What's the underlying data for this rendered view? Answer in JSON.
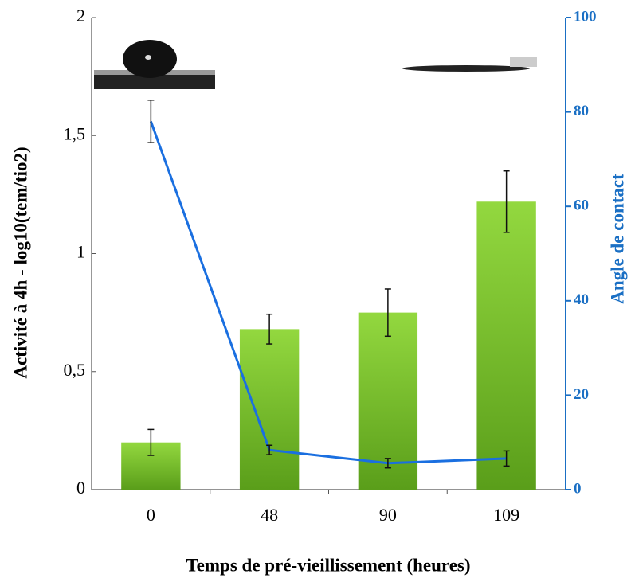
{
  "chart_data": {
    "type": "bar",
    "x_label": "Temps de pré-vieillissement (heures)",
    "y_label": "Activité à 4h - log10(tem/tio2)",
    "y2_label": "Angle de contact",
    "categories": [
      "0",
      "48",
      "90",
      "109"
    ],
    "series": [
      {
        "type": "bar",
        "color": "#6cbb26",
        "values": [
          0.2,
          0.68,
          0.75,
          1.22
        ],
        "errors": [
          0.055,
          0.063,
          0.1,
          0.13
        ]
      },
      {
        "type": "line",
        "axis": "y2",
        "color": "#1a6fe0",
        "values": [
          78,
          8.4,
          5.6,
          6.6
        ],
        "errors": [
          4.5,
          1,
          1,
          1.6
        ]
      }
    ],
    "ylim": [
      0,
      2
    ],
    "yticks": [
      0,
      {
        "value": 0.5,
        "label": "0,5"
      },
      1,
      {
        "value": 1.5,
        "label": "1,5"
      },
      2
    ],
    "y2lim": [
      0,
      100
    ],
    "y2ticks": [
      0,
      20,
      40,
      60,
      80,
      100
    ]
  }
}
